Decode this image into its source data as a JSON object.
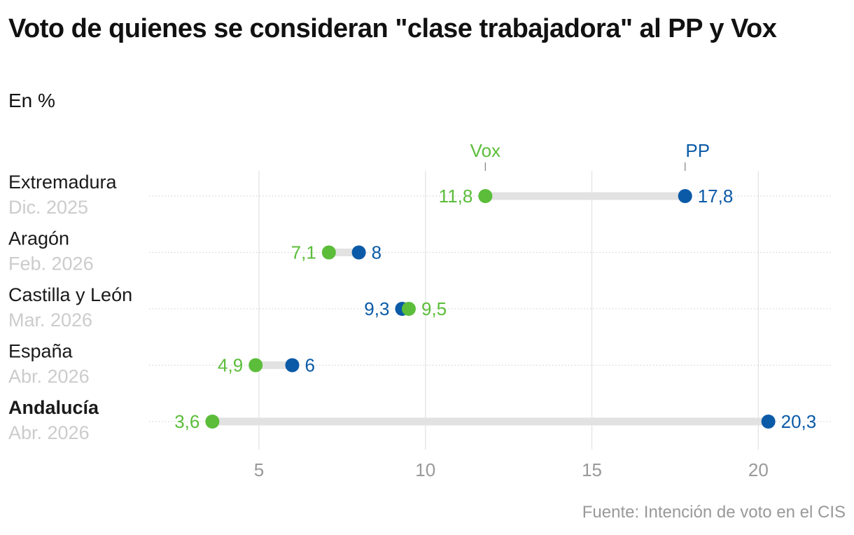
{
  "title": "Voto de quienes se consideran \"clase trabajadora\" al PP y Vox",
  "subtitle": "En %",
  "source": "Fuente: Intención de voto en el CIS",
  "colors": {
    "vox": "#5bbd3a",
    "pp": "#0b5aa7",
    "connector": "#e2e2e2",
    "grid": "#e4e4e4",
    "muted": "#cccccc",
    "tick": "#999999"
  },
  "chart_data": {
    "type": "dumbbell",
    "title": "Voto de quienes se consideran \"clase trabajadora\" al PP y Vox",
    "subtitle": "En %",
    "xlim": [
      1.7,
      22.2
    ],
    "xticks": [
      5,
      10,
      15,
      20
    ],
    "xtick_labels": [
      "5",
      "10",
      "15",
      "20"
    ],
    "grid": "vertical",
    "series": [
      {
        "name": "Vox",
        "color": "#5bbd3a"
      },
      {
        "name": "PP",
        "color": "#0b5aa7"
      }
    ],
    "legend_anchor_row": 0,
    "rows": [
      {
        "label": "Extremadura",
        "date": "Dic. 2025",
        "bold": false,
        "vox": 11.8,
        "pp": 17.8,
        "vox_label": "11,8",
        "pp_label": "17,8"
      },
      {
        "label": "Aragón",
        "date": "Feb. 2026",
        "bold": false,
        "vox": 7.1,
        "pp": 8,
        "vox_label": "7,1",
        "pp_label": "8"
      },
      {
        "label": "Castilla y León",
        "date": "Mar. 2026",
        "bold": false,
        "vox": 9.5,
        "pp": 9.3,
        "vox_label": "9,5",
        "pp_label": "9,3"
      },
      {
        "label": "España",
        "date": "Abr. 2026",
        "bold": false,
        "vox": 4.9,
        "pp": 6,
        "vox_label": "4,9",
        "pp_label": "6"
      },
      {
        "label": "Andalucía",
        "date": "Abr. 2026",
        "bold": true,
        "vox": 3.6,
        "pp": 20.3,
        "vox_label": "3,6",
        "pp_label": "20,3"
      }
    ]
  }
}
